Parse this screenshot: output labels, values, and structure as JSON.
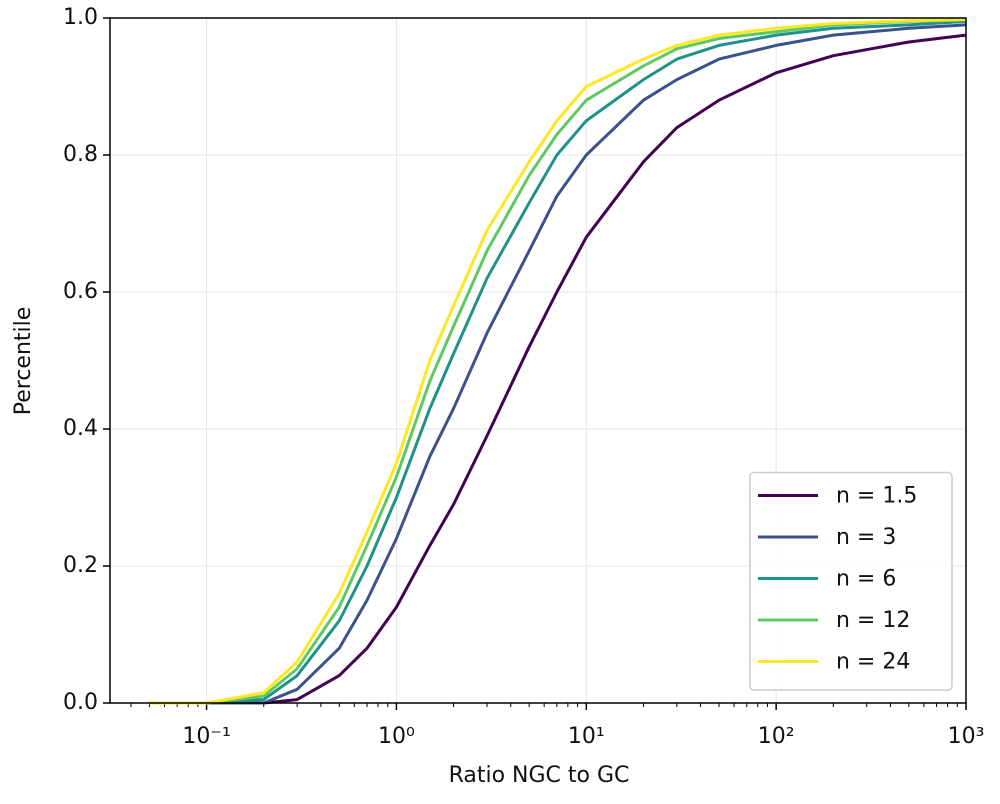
{
  "chart_data": {
    "type": "line",
    "xlabel": "Ratio NGC to GC",
    "ylabel": "Percentile",
    "xscale": "log",
    "grid": true,
    "legend": "lower right",
    "x": [
      0.05,
      0.1,
      0.2,
      0.3,
      0.5,
      0.7,
      1,
      1.5,
      2,
      3,
      5,
      7,
      10,
      20,
      30,
      50,
      100,
      200,
      500,
      1000
    ],
    "series": [
      {
        "name": "n = 1.5",
        "color": "#440154",
        "values": [
          0,
          0,
          0,
          0.005,
          0.04,
          0.08,
          0.14,
          0.23,
          0.29,
          0.39,
          0.52,
          0.6,
          0.68,
          0.79,
          0.84,
          0.88,
          0.92,
          0.945,
          0.965,
          0.975
        ]
      },
      {
        "name": "n = 3",
        "color": "#3b528b",
        "values": [
          0,
          0,
          0,
          0.02,
          0.08,
          0.15,
          0.24,
          0.36,
          0.43,
          0.54,
          0.66,
          0.74,
          0.8,
          0.88,
          0.91,
          0.94,
          0.96,
          0.975,
          0.985,
          0.99
        ]
      },
      {
        "name": "n = 6",
        "color": "#21918c",
        "values": [
          0,
          0,
          0.005,
          0.04,
          0.12,
          0.2,
          0.3,
          0.43,
          0.51,
          0.62,
          0.73,
          0.8,
          0.85,
          0.91,
          0.94,
          0.96,
          0.975,
          0.985,
          0.99,
          0.995
        ]
      },
      {
        "name": "n = 12",
        "color": "#5ec962",
        "values": [
          0,
          0,
          0.01,
          0.05,
          0.14,
          0.23,
          0.33,
          0.47,
          0.55,
          0.66,
          0.77,
          0.83,
          0.88,
          0.93,
          0.955,
          0.97,
          0.98,
          0.99,
          0.995,
          0.997
        ]
      },
      {
        "name": "n = 24",
        "color": "#fde725",
        "values": [
          0,
          0,
          0.015,
          0.06,
          0.16,
          0.25,
          0.35,
          0.5,
          0.58,
          0.69,
          0.79,
          0.85,
          0.9,
          0.94,
          0.96,
          0.975,
          0.985,
          0.992,
          0.996,
          0.998
        ]
      }
    ],
    "xlim": [
      0.031,
      1000
    ],
    "xticks": [
      {
        "value": 0.1,
        "label": "10⁻¹"
      },
      {
        "value": 1,
        "label": "10⁰"
      },
      {
        "value": 10,
        "label": "10¹"
      },
      {
        "value": 100,
        "label": "10²"
      },
      {
        "value": 1000,
        "label": "10³"
      }
    ],
    "ylim": [
      0,
      1
    ],
    "yticks": [
      {
        "value": 0,
        "label": "0.0"
      },
      0.2,
      0.4,
      0.6,
      0.8,
      {
        "value": 1,
        "label": "1.0"
      }
    ]
  }
}
